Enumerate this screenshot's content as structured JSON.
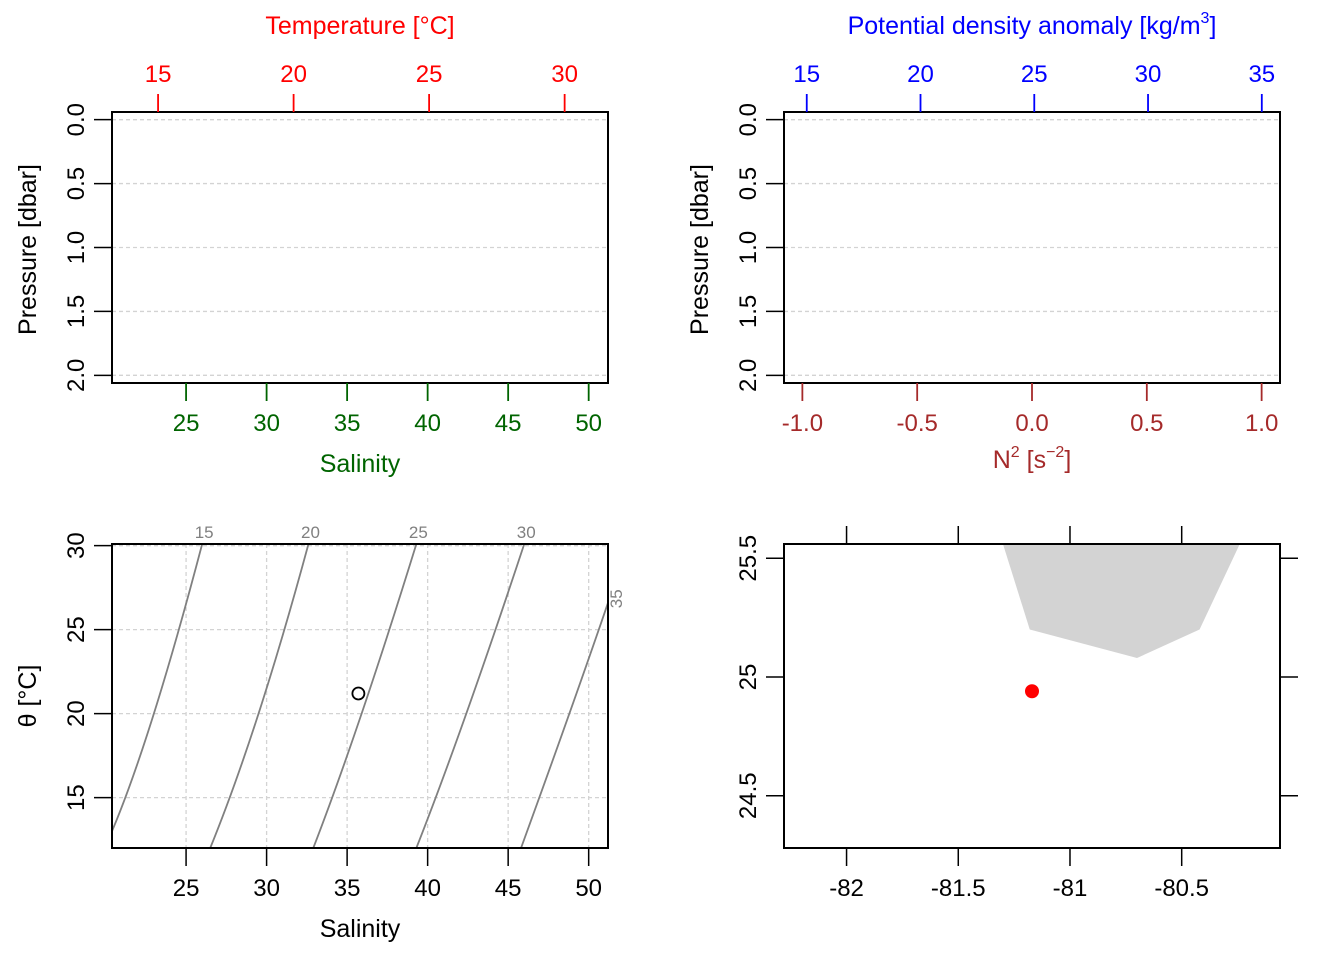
{
  "chart_data": [
    {
      "id": "temp-salinity-profile",
      "type": "line",
      "title": "",
      "top_axis": {
        "label": "Temperature [°C]",
        "color": "#ff0000",
        "ticks": [
          "15",
          "20",
          "25",
          "30"
        ],
        "range": [
          13.3,
          31.6
        ]
      },
      "bottom_axis": {
        "label": "Salinity",
        "color": "#006400",
        "ticks": [
          "25",
          "30",
          "35",
          "40",
          "45",
          "50"
        ],
        "range": [
          20.4,
          51.2
        ]
      },
      "left_axis": {
        "label": "Pressure [dbar]",
        "ticks": [
          "0.0",
          "0.5",
          "1.0",
          "1.5",
          "2.0"
        ],
        "range": [
          -0.06,
          2.06
        ],
        "reversed": true
      },
      "grid": true,
      "series": []
    },
    {
      "id": "density-n2-profile",
      "type": "line",
      "title": "",
      "top_axis": {
        "label": "Potential density anomaly [kg/m³]",
        "label_main": "Potential density anomaly [kg/m",
        "label_sup": "3",
        "label_tail": "]",
        "color": "#0000ff",
        "ticks": [
          "15",
          "20",
          "25",
          "30",
          "35"
        ],
        "range": [
          14.0,
          35.8
        ]
      },
      "bottom_axis": {
        "label": "N² [s⁻²]",
        "label_main": "N",
        "label_sup1": "2",
        "label_mid": " [s",
        "label_sup2": "−2",
        "label_tail": "]",
        "color": "#a52a2a",
        "ticks": [
          "-1.0",
          "-0.5",
          "0.0",
          "0.5",
          "1.0"
        ],
        "range": [
          -1.08,
          1.08
        ]
      },
      "left_axis": {
        "label": "Pressure [dbar]",
        "ticks": [
          "0.0",
          "0.5",
          "1.0",
          "1.5",
          "2.0"
        ],
        "range": [
          -0.06,
          2.06
        ],
        "reversed": true
      },
      "grid": true,
      "series": []
    },
    {
      "id": "ts-diagram",
      "type": "scatter",
      "title": "",
      "xlabel": "Salinity",
      "ylabel": "θ [°C]",
      "x_ticks": [
        "25",
        "30",
        "35",
        "40",
        "45",
        "50"
      ],
      "y_ticks": [
        "15",
        "20",
        "25",
        "30"
      ],
      "xlim": [
        20.4,
        51.2
      ],
      "ylim": [
        12.0,
        30.1
      ],
      "grid": true,
      "isopycnals": [
        {
          "label": "15",
          "color": "#808080",
          "points": [
            [
              20.4,
              13.0
            ],
            [
              23.0,
              20.0
            ],
            [
              26.0,
              30.1
            ]
          ]
        },
        {
          "label": "20",
          "color": "#808080",
          "points": [
            [
              26.5,
              12.0
            ],
            [
              29.5,
              20.0
            ],
            [
              32.6,
              30.1
            ]
          ]
        },
        {
          "label": "25",
          "color": "#808080",
          "points": [
            [
              32.9,
              12.0
            ],
            [
              35.9,
              20.0
            ],
            [
              39.3,
              30.1
            ]
          ]
        },
        {
          "label": "30",
          "color": "#808080",
          "points": [
            [
              39.3,
              12.0
            ],
            [
              42.4,
              20.0
            ],
            [
              46.0,
              30.1
            ]
          ]
        },
        {
          "label": "35",
          "color": "#808080",
          "points": [
            [
              45.8,
              12.0
            ],
            [
              48.8,
              20.0
            ],
            [
              51.2,
              26.6
            ]
          ]
        }
      ],
      "points": [
        {
          "salinity": 35.7,
          "theta": 21.2
        }
      ]
    },
    {
      "id": "station-map",
      "type": "scatter",
      "title": "",
      "x_ticks": [
        "-82",
        "-81.5",
        "-81",
        "-80.5"
      ],
      "y_ticks": [
        "24.5",
        "25",
        "25.5"
      ],
      "xlim": [
        -82.28,
        -80.06
      ],
      "ylim": [
        24.28,
        25.56
      ],
      "land_color": "#d3d3d3",
      "land": [
        [
          -81.3,
          25.56
        ],
        [
          -81.18,
          25.2
        ],
        [
          -80.7,
          25.08
        ],
        [
          -80.42,
          25.2
        ],
        [
          -80.24,
          25.56
        ]
      ],
      "station": {
        "lon": -81.17,
        "lat": 24.94,
        "color": "#ff0000"
      }
    }
  ]
}
